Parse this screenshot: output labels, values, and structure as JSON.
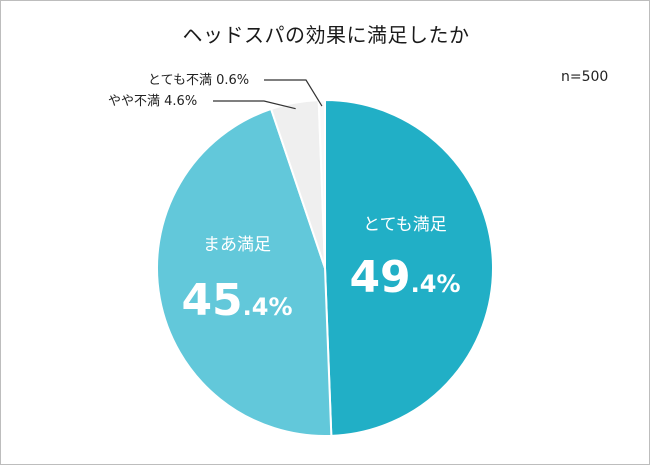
{
  "chart_data": {
    "type": "pie",
    "title": "ヘッドスパの効果に満足したか",
    "note": "n=500",
    "slices": [
      {
        "label": "とても満足",
        "value": 49.4,
        "big": "49",
        "small": ".4%",
        "color": "#21afc6"
      },
      {
        "label": "まあ満足",
        "value": 45.4,
        "big": "45",
        "small": ".4%",
        "color": "#62c8da"
      },
      {
        "label": "やや不満",
        "value_text": "4.6%",
        "value": 4.6,
        "color": "#efefef"
      },
      {
        "label": "とても不満",
        "value_text": "0.6%",
        "value": 0.6,
        "color": "#f9f9f9"
      }
    ],
    "start_angle_deg": 0,
    "direction": "clockwise",
    "legend": "none"
  }
}
